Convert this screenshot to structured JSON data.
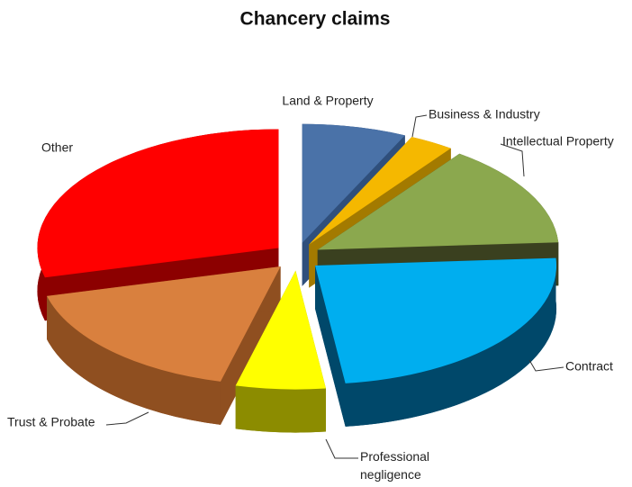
{
  "chart_data": {
    "type": "pie3d",
    "title": "Chancery claims",
    "categories": [
      "Land & Property",
      "Business & Industry",
      "Intellectual Property",
      "Contract",
      "Professional negligence",
      "Trust & Probate",
      "Other"
    ],
    "values": [
      7,
      3,
      14,
      24,
      6,
      17,
      29
    ],
    "colors": [
      "#4a72a8",
      "#f5b800",
      "#8ba84e",
      "#00aeef",
      "#ffff00",
      "#d9803e",
      "#ff0000"
    ],
    "side_colors": [
      "#2f4f7c",
      "#a37a00",
      "#3a401f",
      "#00486a",
      "#8c8c00",
      "#8f4f20",
      "#8c0000"
    ],
    "exploded": true
  }
}
